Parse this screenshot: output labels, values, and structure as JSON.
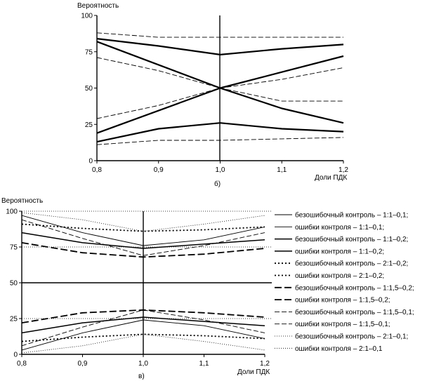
{
  "chart_data": [
    {
      "type": "line",
      "panel": "б)",
      "title": "",
      "ylabel": "Вероятность",
      "xlabel": "Доли ПДК",
      "x": [
        0.8,
        0.9,
        1.0,
        1.1,
        1.2
      ],
      "x_tick_labels": [
        "0,8",
        "0,9",
        "1,0",
        "1,1",
        "1,2"
      ],
      "y_ticks": [
        0,
        25,
        50,
        75,
        100
      ],
      "y_tick_labels": [
        "0",
        "25",
        "50",
        "75",
        "100"
      ],
      "xlim": [
        0.8,
        1.2
      ],
      "ylim": [
        0,
        100
      ],
      "grid": false,
      "series": [
        {
          "name": "thin-dashed-top",
          "style": "thin-dashed",
          "values": [
            88,
            85,
            85,
            85,
            85
          ]
        },
        {
          "name": "bold-top",
          "style": "bold-solid",
          "values": [
            84,
            79,
            73,
            77,
            80
          ]
        },
        {
          "name": "bold-down-cross",
          "style": "bold-solid",
          "values": [
            82,
            null,
            50,
            36,
            26
          ]
        },
        {
          "name": "bold-up-cross",
          "style": "bold-solid",
          "values": [
            19,
            null,
            50,
            61,
            72
          ]
        },
        {
          "name": "thin-dashed-down",
          "style": "thin-dashed",
          "values": [
            71,
            62,
            50,
            41,
            41
          ]
        },
        {
          "name": "thin-dashed-up",
          "style": "thin-dashed",
          "values": [
            29,
            38,
            50,
            56,
            64
          ]
        },
        {
          "name": "bold-bottom",
          "style": "bold-solid",
          "values": [
            13,
            22,
            26,
            22,
            20
          ]
        },
        {
          "name": "thin-dashed-bottom",
          "style": "thin-dashed",
          "values": [
            11,
            14,
            14,
            15,
            16
          ]
        }
      ]
    },
    {
      "type": "line",
      "panel": "в)",
      "title": "",
      "ylabel": "Вероятность",
      "xlabel": "Доли ПДК",
      "x": [
        0.8,
        0.9,
        1.0,
        1.1,
        1.2
      ],
      "x_tick_labels": [
        "0,8",
        "0,9",
        "1,0",
        "1,1",
        "1,2"
      ],
      "y_ticks": [
        0,
        25,
        50,
        75,
        100
      ],
      "y_tick_labels": [
        "0",
        "25",
        "50",
        "75",
        "100"
      ],
      "xlim": [
        0.8,
        1.2
      ],
      "ylim": [
        0,
        100
      ],
      "grid": false,
      "legend_position": "right",
      "series": [
        {
          "name": "безошибочный контроль – 1:1–0,1;",
          "style": "thin-solid",
          "values": [
            97,
            85,
            76,
            80,
            89
          ]
        },
        {
          "name": "ошибки контроля – 1:1–0,1;",
          "style": "thin-solid",
          "values": [
            3,
            15,
            24,
            20,
            11
          ]
        },
        {
          "name": "безошибочный контроль – 1:1–0,2;",
          "style": "medium-solid",
          "values": [
            85,
            78,
            74,
            77,
            80
          ]
        },
        {
          "name": "ошибки контроля – 1:1–0,2;",
          "style": "medium-solid",
          "values": [
            15,
            22,
            26,
            23,
            20
          ]
        },
        {
          "name": "безошибочный контроль – 2:1–0,2;",
          "style": "dotted-bold",
          "values": [
            91,
            88,
            86,
            87,
            89
          ]
        },
        {
          "name": "ошибки контроля – 2:1–0,2;",
          "style": "dotted-bold",
          "values": [
            9,
            12,
            14,
            13,
            11
          ]
        },
        {
          "name": "безошибочный контроль – 1:1,5–0,2;",
          "style": "bold-dashed",
          "values": [
            78,
            71,
            68,
            70,
            74
          ]
        },
        {
          "name": "ошибки контроля – 1:1,5–0,2;",
          "style": "bold-dashed",
          "values": [
            22,
            29,
            31,
            29,
            26
          ]
        },
        {
          "name": "безошибочный контроль – 1:1,5–0,1;",
          "style": "thin-dashed",
          "values": [
            94,
            81,
            69,
            76,
            85
          ]
        },
        {
          "name": "ошибки контроля – 1:1,5–0,1;",
          "style": "thin-dashed",
          "values": [
            6,
            19,
            31,
            24,
            15
          ]
        },
        {
          "name": "безошибочный контроль – 2:1–0,1;",
          "style": "fine-dotted",
          "values": [
            99,
            94,
            86,
            91,
            97
          ]
        },
        {
          "name": "ошибки контроля – 2:1–0,1",
          "style": "fine-dotted",
          "values": [
            1,
            6,
            14,
            9,
            3
          ]
        }
      ],
      "reference_lines": [
        {
          "name": "ref-100",
          "style": "fine-dotted",
          "value": 100
        },
        {
          "name": "ref-75",
          "style": "fine-dotted",
          "value": 75
        },
        {
          "name": "ref-50",
          "style": "medium-solid",
          "value": 50
        },
        {
          "name": "ref-25",
          "style": "fine-dotted",
          "value": 25
        }
      ]
    }
  ]
}
